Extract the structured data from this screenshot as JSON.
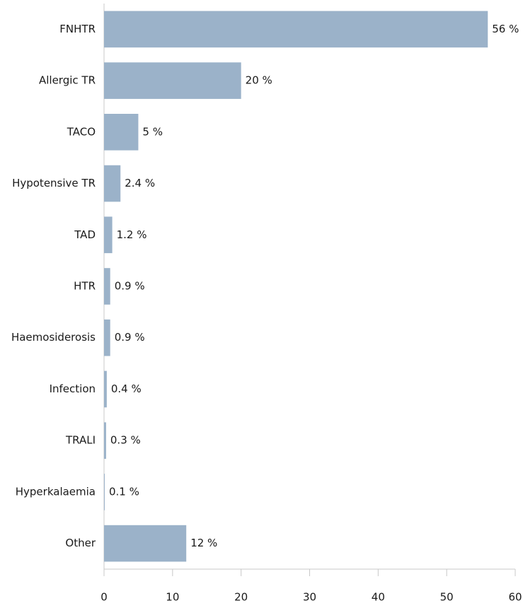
{
  "chart_data": {
    "type": "barh",
    "categories": [
      "FNHTR",
      "Allergic TR",
      "TACO",
      "Hypotensive TR",
      "TAD",
      "HTR",
      "Haemosiderosis",
      "Infection",
      "TRALI",
      "Hyperkalaemia",
      "Other"
    ],
    "values": [
      56,
      20,
      5,
      2.4,
      1.2,
      0.9,
      0.9,
      0.4,
      0.3,
      0.1,
      12
    ],
    "value_labels": [
      "56 %",
      "20 %",
      "5 %",
      "2.4 %",
      "1.2 %",
      "0.9 %",
      "0.9 %",
      "0.4 %",
      "0.3 %",
      "0.1 %",
      "12 %"
    ],
    "color": "#9bb2c9",
    "xlim": [
      0,
      60
    ],
    "xticks": [
      0,
      10,
      20,
      30,
      40,
      50,
      60
    ],
    "grid": false
  }
}
